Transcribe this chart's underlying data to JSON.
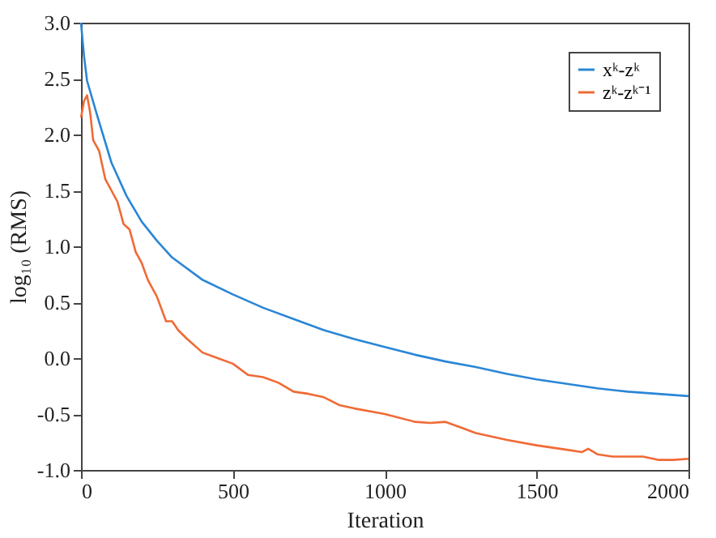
{
  "chart_data": {
    "type": "line",
    "xlabel": "Iteration",
    "ylabel": "log₁₀ (RMS)",
    "xlim": [
      0,
      2000
    ],
    "ylim": [
      -1.0,
      3.0
    ],
    "xticks": [
      0,
      500,
      1000,
      1500,
      2000
    ],
    "yticks": [
      {
        "value": -1,
        "label": "-1.0"
      },
      {
        "value": -0.5,
        "label": "-0.5"
      },
      {
        "value": 0,
        "label": "0.0"
      },
      {
        "value": 0.5,
        "label": "0.5"
      },
      {
        "value": 1,
        "label": "1.0"
      },
      {
        "value": 1.5,
        "label": "1.5"
      },
      {
        "value": 2,
        "label": "2.0"
      },
      {
        "value": 2.5,
        "label": "2.5"
      },
      {
        "value": 3,
        "label": "3.0"
      }
    ],
    "grid": false,
    "legend": "top right",
    "line_style": "solid",
    "series": [
      {
        "name": "xᵏ-zᵏ",
        "color": "#2a86d6",
        "x": [
          0,
          10,
          20,
          50,
          100,
          150,
          200,
          250,
          300,
          400,
          500,
          600,
          700,
          800,
          900,
          1000,
          1100,
          1200,
          1300,
          1400,
          1500,
          1600,
          1700,
          1800,
          1900,
          2000
        ],
        "values": [
          3.0,
          2.7,
          2.48,
          2.2,
          1.75,
          1.45,
          1.22,
          1.05,
          0.9,
          0.7,
          0.57,
          0.45,
          0.35,
          0.25,
          0.17,
          0.1,
          0.03,
          -0.03,
          -0.08,
          -0.14,
          -0.19,
          -0.23,
          -0.27,
          -0.3,
          -0.32,
          -0.34
        ]
      },
      {
        "name": "zᵏ-zᵏ⁻¹",
        "color": "#f06a35",
        "x": [
          0,
          10,
          20,
          30,
          40,
          60,
          80,
          100,
          120,
          140,
          160,
          180,
          200,
          220,
          250,
          280,
          300,
          320,
          350,
          400,
          450,
          500,
          550,
          600,
          650,
          700,
          750,
          800,
          850,
          900,
          1000,
          1100,
          1150,
          1200,
          1250,
          1300,
          1400,
          1500,
          1600,
          1650,
          1670,
          1700,
          1750,
          1800,
          1850,
          1900,
          1950,
          2000
        ],
        "values": [
          2.15,
          2.3,
          2.35,
          2.2,
          1.95,
          1.85,
          1.6,
          1.5,
          1.4,
          1.2,
          1.15,
          0.95,
          0.85,
          0.7,
          0.55,
          0.33,
          0.33,
          0.25,
          0.17,
          0.05,
          0.0,
          -0.05,
          -0.15,
          -0.17,
          -0.22,
          -0.3,
          -0.32,
          -0.35,
          -0.42,
          -0.45,
          -0.5,
          -0.57,
          -0.58,
          -0.57,
          -0.62,
          -0.67,
          -0.73,
          -0.78,
          -0.82,
          -0.84,
          -0.81,
          -0.86,
          -0.88,
          -0.88,
          -0.88,
          -0.91,
          -0.91,
          -0.9
        ]
      }
    ]
  }
}
